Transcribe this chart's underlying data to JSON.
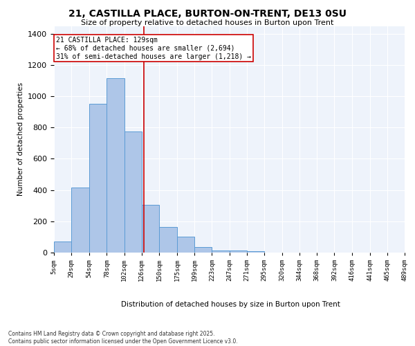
{
  "title_line1": "21, CASTILLA PLACE, BURTON-ON-TRENT, DE13 0SU",
  "title_line2": "Size of property relative to detached houses in Burton upon Trent",
  "xlabel": "Distribution of detached houses by size in Burton upon Trent",
  "ylabel": "Number of detached properties",
  "bin_labels": [
    "5sqm",
    "29sqm",
    "54sqm",
    "78sqm",
    "102sqm",
    "126sqm",
    "150sqm",
    "175sqm",
    "199sqm",
    "223sqm",
    "247sqm",
    "271sqm",
    "295sqm",
    "320sqm",
    "344sqm",
    "368sqm",
    "392sqm",
    "416sqm",
    "441sqm",
    "465sqm",
    "489sqm"
  ],
  "bar_edges": [
    5,
    29,
    54,
    78,
    102,
    126,
    150,
    175,
    199,
    223,
    247,
    271,
    295,
    320,
    344,
    368,
    392,
    416,
    441,
    465,
    489
  ],
  "bar_counts": [
    70,
    415,
    950,
    1115,
    775,
    305,
    165,
    100,
    35,
    15,
    15,
    10,
    0,
    0,
    0,
    0,
    0,
    0,
    0,
    0
  ],
  "bar_color": "#aec6e8",
  "bar_edge_color": "#5b9bd5",
  "vline_x": 129,
  "vline_color": "#cc0000",
  "annotation_text": "21 CASTILLA PLACE: 129sqm\n← 68% of detached houses are smaller (2,694)\n31% of semi-detached houses are larger (1,218) →",
  "annotation_box_color": "#ffffff",
  "annotation_border_color": "#cc0000",
  "ylim": [
    0,
    1450
  ],
  "yticks": [
    0,
    200,
    400,
    600,
    800,
    1000,
    1200,
    1400
  ],
  "bg_color": "#eef3fb",
  "footer_line1": "Contains HM Land Registry data © Crown copyright and database right 2025.",
  "footer_line2": "Contains public sector information licensed under the Open Government Licence v3.0."
}
